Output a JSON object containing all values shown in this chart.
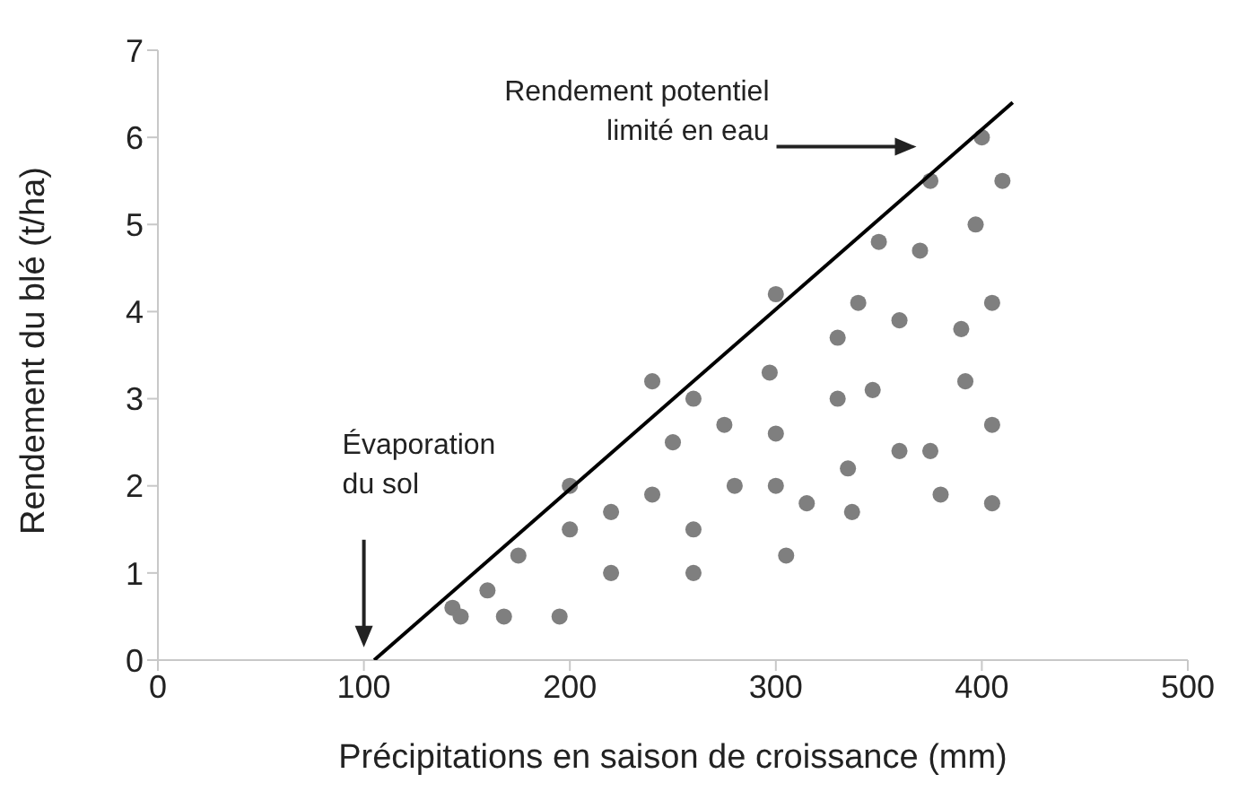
{
  "chart_data": {
    "type": "scatter",
    "xlabel": "Précipitations en saison de croissance (mm)",
    "ylabel": "Rendement du blé (t/ha)",
    "xlim": [
      0,
      500
    ],
    "xticks": [
      0,
      100,
      200,
      300,
      400,
      500
    ],
    "ylim": [
      0,
      7
    ],
    "yticks": [
      0,
      1,
      2,
      3,
      4,
      5,
      6,
      7
    ],
    "grid": false,
    "legend": false,
    "marker": "circle",
    "series": [
      {
        "color": "#7f7f7f",
        "x": [
          143,
          147,
          160,
          168,
          175,
          195,
          200,
          200,
          220,
          220,
          240,
          240,
          250,
          260,
          260,
          260,
          275,
          280,
          297,
          300,
          300,
          300,
          305,
          315,
          330,
          330,
          335,
          337,
          340,
          347,
          350,
          360,
          360,
          370,
          375,
          375,
          380,
          390,
          392,
          397,
          400,
          405,
          405,
          405,
          410
        ],
        "values": [
          0.6,
          0.5,
          0.8,
          0.5,
          1.2,
          0.5,
          2.0,
          1.5,
          1.7,
          1.0,
          3.2,
          1.9,
          2.5,
          3.0,
          1.5,
          1.0,
          2.7,
          2.0,
          3.3,
          4.2,
          2.6,
          2.0,
          1.2,
          1.8,
          3.7,
          3.0,
          2.2,
          1.7,
          4.1,
          3.1,
          4.8,
          3.9,
          2.4,
          4.7,
          5.5,
          2.4,
          1.9,
          3.8,
          3.2,
          5.0,
          6.0,
          4.1,
          2.7,
          1.8,
          5.5
        ]
      },
      {
        "type": "line",
        "color": "#000000",
        "x": [
          105,
          415
        ],
        "values": [
          0,
          6.4
        ],
        "marker": "none"
      }
    ],
    "annotations": [
      "Évaporation du sol",
      "Rendement potentiel limité en eau"
    ]
  }
}
